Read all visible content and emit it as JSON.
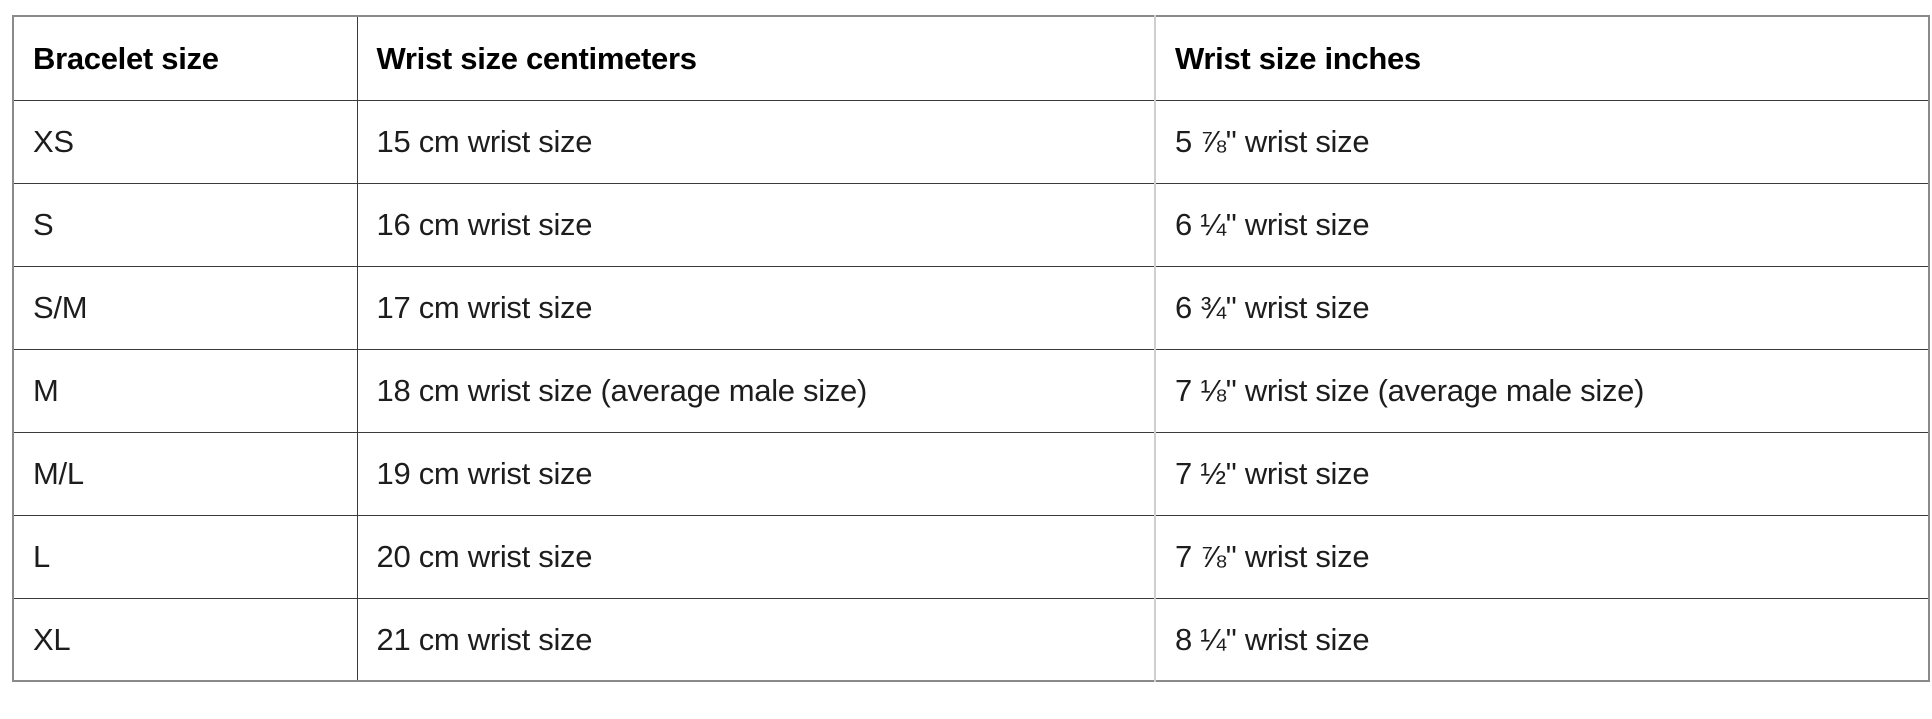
{
  "table": {
    "columns": [
      "Bracelet size",
      "Wrist size centimeters",
      "Wrist size inches"
    ],
    "rows": [
      {
        "size": "XS",
        "cm": "15 cm wrist size",
        "inches": "5 ⅞\" wrist size"
      },
      {
        "size": "S",
        "cm": "16 cm wrist size",
        "inches": "6 ¼\" wrist size"
      },
      {
        "size": "S/M",
        "cm": "17 cm wrist size",
        "inches": "6 ¾\" wrist size"
      },
      {
        "size": "M",
        "cm": "18 cm wrist size (average male size)",
        "inches": "7 ⅛\" wrist size (average male size)"
      },
      {
        "size": "M/L",
        "cm": "19 cm wrist size",
        "inches": "7 ½\" wrist size"
      },
      {
        "size": "L",
        "cm": "20 cm wrist size",
        "inches": "7 ⅞\" wrist size"
      },
      {
        "size": "XL",
        "cm": "21 cm wrist size",
        "inches": "8 ¼\" wrist size"
      }
    ],
    "colors": {
      "outer_border": "#8a8a8a",
      "inner_border_dark": "#3b3b3b",
      "inner_border_light": "#cfcfcf",
      "body_text": "#1d1d1d",
      "header_text": "#000000"
    }
  }
}
